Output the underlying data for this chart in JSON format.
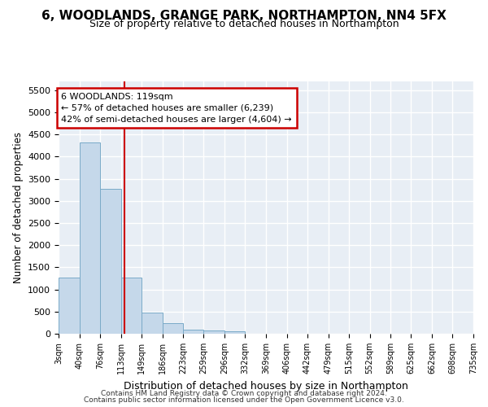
{
  "title": "6, WOODLANDS, GRANGE PARK, NORTHAMPTON, NN4 5FX",
  "subtitle": "Size of property relative to detached houses in Northampton",
  "xlabel": "Distribution of detached houses by size in Northampton",
  "ylabel": "Number of detached properties",
  "bar_values": [
    1270,
    4330,
    3280,
    1270,
    480,
    230,
    100,
    75,
    55,
    0,
    0,
    0,
    0,
    0,
    0,
    0,
    0,
    0,
    0,
    0
  ],
  "bin_edges": [
    3,
    40,
    76,
    113,
    149,
    186,
    223,
    259,
    296,
    332,
    369,
    406,
    442,
    479,
    515,
    552,
    589,
    625,
    662,
    698,
    735
  ],
  "tick_labels": [
    "3sqm",
    "40sqm",
    "76sqm",
    "113sqm",
    "149sqm",
    "186sqm",
    "223sqm",
    "259sqm",
    "296sqm",
    "332sqm",
    "369sqm",
    "406sqm",
    "442sqm",
    "479sqm",
    "515sqm",
    "552sqm",
    "589sqm",
    "625sqm",
    "662sqm",
    "698sqm",
    "735sqm"
  ],
  "property_size": 119,
  "annotation_line1": "6 WOODLANDS: 119sqm",
  "annotation_line2": "← 57% of detached houses are smaller (6,239)",
  "annotation_line3": "42% of semi-detached houses are larger (4,604) →",
  "vline_color": "#cc0000",
  "bar_facecolor": "#c5d8ea",
  "bar_edgecolor": "#7aaac8",
  "annotation_box_edgecolor": "#cc0000",
  "annotation_box_facecolor": "#ffffff",
  "axes_facecolor": "#e8eef5",
  "grid_color": "#ffffff",
  "ylim": [
    0,
    5700
  ],
  "yticks": [
    0,
    500,
    1000,
    1500,
    2000,
    2500,
    3000,
    3500,
    4000,
    4500,
    5000,
    5500
  ],
  "title_fontsize": 11,
  "subtitle_fontsize": 9,
  "footer_line1": "Contains HM Land Registry data © Crown copyright and database right 2024.",
  "footer_line2": "Contains public sector information licensed under the Open Government Licence v3.0."
}
